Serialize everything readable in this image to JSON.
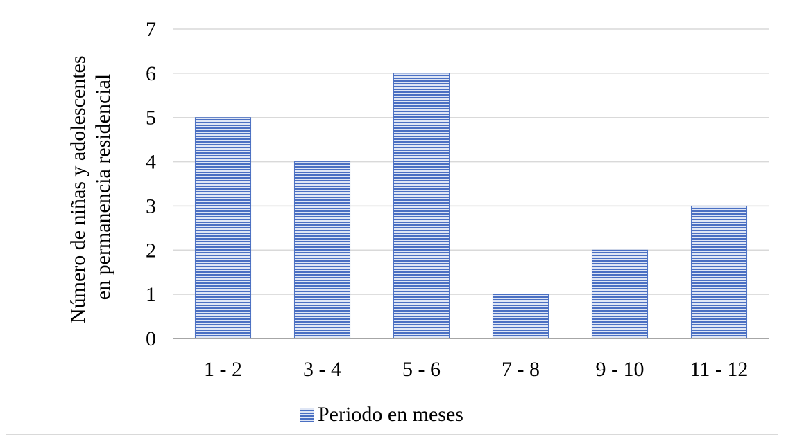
{
  "chart_data": {
    "type": "bar",
    "categories": [
      "1 - 2",
      "3 - 4",
      "5 - 6",
      "7 - 8",
      "9 - 10",
      "11 - 12"
    ],
    "series": [
      {
        "name": "Periodo en meses",
        "values": [
          5,
          4,
          6,
          1,
          2,
          3
        ]
      }
    ],
    "ylabel_lines": [
      "Número de niñas y adolescentes",
      "en permanencia residencial"
    ],
    "xlabel": "",
    "ylim": [
      0,
      7
    ],
    "yticks": [
      0,
      1,
      2,
      3,
      4,
      5,
      6,
      7
    ],
    "grid": true,
    "legend_position": "bottom",
    "colors": {
      "bar_fill": "#4a6fc2",
      "bar_stripe": "#dfe6f5",
      "bar_border": "#4a6fc2",
      "grid": "#d9d9d9",
      "axis": "#a6a6a6"
    }
  }
}
